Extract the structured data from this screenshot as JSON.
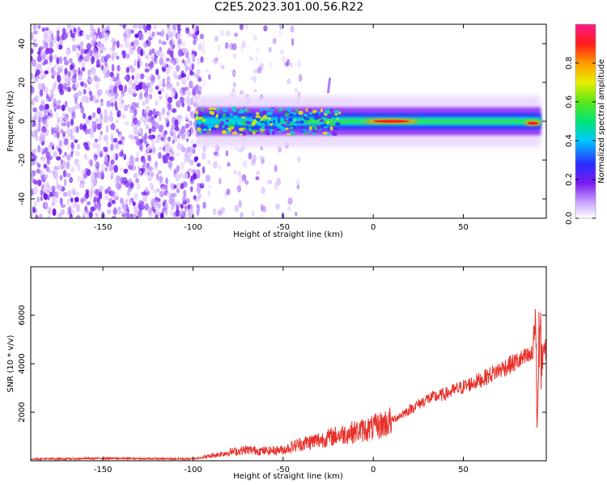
{
  "title": "C2E5.2023.301.00.56.R22",
  "colors": {
    "axis": "#000000",
    "snr_line": "#e8302a",
    "spectrum_low": "#f1e4ff",
    "spectrum_mid": "#7b1cf0",
    "spectrum_core": "#2ecf57",
    "spectrum_peak": "#ff1a00"
  },
  "chart_data": [
    {
      "type": "heatmap",
      "title": "C2E5.2023.301.00.56.R22",
      "xlabel": "Height of straight line (km)",
      "ylabel": "Frequency (Hz)",
      "xlim": [
        -190,
        96
      ],
      "ylim": [
        -50,
        50
      ],
      "xticks": [
        -150,
        -100,
        -50,
        0,
        50
      ],
      "yticks": [
        -40,
        -20,
        0,
        20,
        40
      ],
      "grid": false,
      "colorbar": {
        "label": "Normalized spectral amplitude",
        "range": [
          0,
          1
        ],
        "ticks": [
          "0.0",
          "0.2",
          "0.4",
          "0.6",
          "0.8"
        ],
        "colormap": "rainbow (white-violet-blue-cyan-green-yellow-orange-red-magenta)"
      },
      "features": [
        {
          "region": "noise",
          "x": [
            -190,
            -95
          ],
          "y": [
            -50,
            50
          ],
          "amplitude": 0.1
        },
        {
          "region": "sparse noise",
          "x": [
            -95,
            -40
          ],
          "y": [
            -50,
            50
          ],
          "amplitude": 0.03
        },
        {
          "region": "doppler band",
          "x": [
            -98,
            93
          ],
          "y_center": 0,
          "y_halfwidth": 6,
          "amplitude": 0.45
        },
        {
          "region": "doppler peak",
          "x": [
            -5,
            25
          ],
          "y_center": 0,
          "amplitude": 0.95
        },
        {
          "region": "doppler peak",
          "x": [
            84,
            93
          ],
          "y_center": -1,
          "amplitude": 0.9
        },
        {
          "region": "feature",
          "x": [
            -25,
            -25
          ],
          "y": [
            15,
            22
          ],
          "amplitude": 0.25
        }
      ]
    },
    {
      "type": "line",
      "xlabel": "Height of straight line (km)",
      "ylabel": "SNR (10 * v/v)",
      "xlim": [
        -190,
        96
      ],
      "ylim": [
        0,
        8000
      ],
      "xticks": [
        -150,
        -100,
        -50,
        0,
        50
      ],
      "yticks": [
        2000,
        4000,
        6000
      ],
      "grid": false,
      "series": [
        {
          "x": [
            -190,
            -170,
            -150,
            -130,
            -110,
            -100,
            -90,
            -80,
            -70,
            -60,
            -50,
            -40,
            -30,
            -20,
            -10,
            0,
            10,
            20,
            30,
            40,
            50,
            60,
            70,
            80,
            85,
            88,
            90,
            91,
            92,
            93,
            94,
            96
          ],
          "values": [
            80,
            80,
            100,
            90,
            80,
            80,
            200,
            350,
            450,
            400,
            450,
            700,
            850,
            1050,
            1200,
            1350,
            1650,
            2100,
            2550,
            2750,
            3050,
            3350,
            3750,
            4100,
            4250,
            4350,
            6000,
            1300,
            5200,
            4500,
            4400,
            4600
          ]
        }
      ]
    }
  ]
}
